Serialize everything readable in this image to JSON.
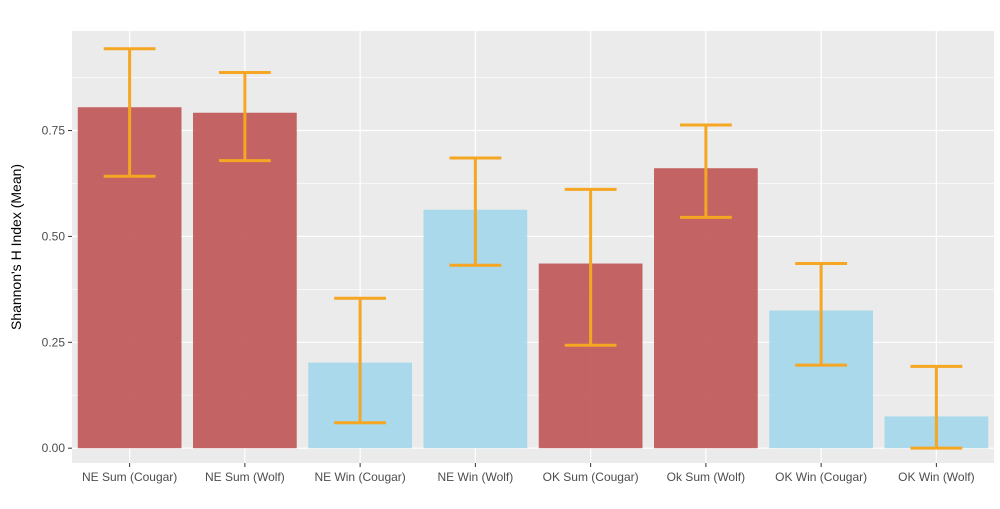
{
  "chart_data": {
    "type": "bar",
    "title": "",
    "xlabel": "",
    "ylabel": "Shannon's H Index (Mean)",
    "ylim": [
      -0.035,
      0.985
    ],
    "yticks": [
      0.0,
      0.25,
      0.5,
      0.75
    ],
    "ytick_labels": [
      "0.00",
      "0.25",
      "0.50",
      "0.75"
    ],
    "grid": true,
    "legend": "none",
    "categories": [
      "NE Sum (Cougar)",
      "NE Sum (Wolf)",
      "NE Win (Cougar)",
      "NE Win (Wolf)",
      "OK Sum (Cougar)",
      "Ok Sum (Wolf)",
      "OK Win (Cougar)",
      "OK Win (Wolf)"
    ],
    "values": [
      0.805,
      0.792,
      0.202,
      0.563,
      0.436,
      0.661,
      0.325,
      0.075
    ],
    "error_low": [
      0.642,
      0.679,
      0.06,
      0.432,
      0.243,
      0.545,
      0.196,
      0.0
    ],
    "error_high": [
      0.943,
      0.887,
      0.354,
      0.685,
      0.611,
      0.763,
      0.436,
      0.193
    ],
    "season": [
      "Summer",
      "Summer",
      "Winter",
      "Winter",
      "Summer",
      "Summer",
      "Winter",
      "Winter"
    ],
    "colors": {
      "summer": "#c15c5c",
      "winter": "#a7d8eb",
      "error_bar": "#f5a623",
      "panel_background": "#ebebeb",
      "grid": "#ffffff"
    }
  }
}
